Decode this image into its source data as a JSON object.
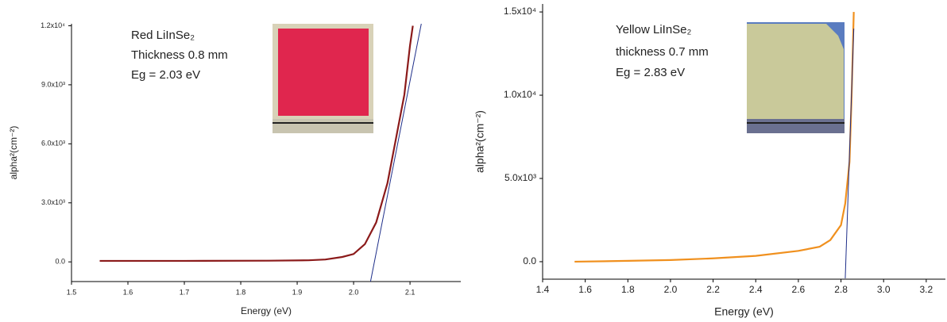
{
  "chart_data": [
    {
      "type": "line",
      "annotations": [
        "Red LiInSe₂",
        "Thickness 0.8 mm",
        "Eg = 2.03 eV"
      ],
      "x_label": "Energy (eV)",
      "y_label": "alpha²(cm⁻²)",
      "xlim": [
        1.5,
        2.19
      ],
      "ylim": [
        -1000,
        12100
      ],
      "xticks": [
        1.5,
        1.6,
        1.7,
        1.8,
        1.9,
        {
          "value": 2,
          "label": "2.0"
        },
        2.1
      ],
      "yticks": [
        {
          "value": 0,
          "label": "0.0"
        },
        {
          "value": 3000,
          "label": "3.0x10³"
        },
        {
          "value": 6000,
          "label": "6.0x10³"
        },
        {
          "value": 9000,
          "label": "9.0x10³"
        },
        {
          "value": 12000,
          "label": "1.2x10⁴"
        }
      ],
      "series": [
        {
          "color": "#8b1a1a",
          "x": [
            1.55,
            1.7,
            1.85,
            1.92,
            1.95,
            1.98,
            2.0,
            2.02,
            2.04,
            2.06,
            2.08,
            2.09,
            2.1,
            2.105
          ],
          "values": [
            50,
            50,
            60,
            80,
            120,
            250,
            400,
            900,
            2000,
            4000,
            7000,
            8500,
            11000,
            12000
          ]
        },
        {
          "color": "#1f2f8a",
          "x": [
            2.03,
            2.12
          ],
          "values": [
            -1000,
            12100
          ]
        }
      ]
    },
    {
      "type": "line",
      "annotations": [
        "Yellow LiInSe₂",
        "thickness 0.7 mm",
        "Eg = 2.83 eV"
      ],
      "x_label": "Energy (eV)",
      "y_label": "alpha²(cm⁻²)",
      "xlim": [
        1.4,
        3.29
      ],
      "ylim": [
        -1050,
        15480
      ],
      "xticks": [
        1.4,
        1.6,
        1.8,
        {
          "value": 2,
          "label": "2.0"
        },
        2.2,
        2.4,
        2.6,
        2.8,
        {
          "value": 3,
          "label": "3.0"
        },
        3.2
      ],
      "yticks": [
        {
          "value": 0,
          "label": "0.0"
        },
        {
          "value": 5000,
          "label": "5.0x10³"
        },
        {
          "value": 10000,
          "label": "1.0x10⁴"
        },
        {
          "value": 15000,
          "label": "1.5x10⁴"
        }
      ],
      "series": [
        {
          "color": "#f0901e",
          "x": [
            1.55,
            1.8,
            2.0,
            2.2,
            2.4,
            2.6,
            2.7,
            2.75,
            2.8,
            2.82,
            2.84,
            2.85,
            2.86
          ],
          "values": [
            0,
            50,
            100,
            200,
            350,
            650,
            900,
            1300,
            2200,
            3500,
            6000,
            10000,
            15000
          ]
        },
        {
          "color": "#1f2f8a",
          "x": [
            2.82,
            2.86
          ],
          "values": [
            -1000,
            14000
          ]
        }
      ]
    }
  ]
}
